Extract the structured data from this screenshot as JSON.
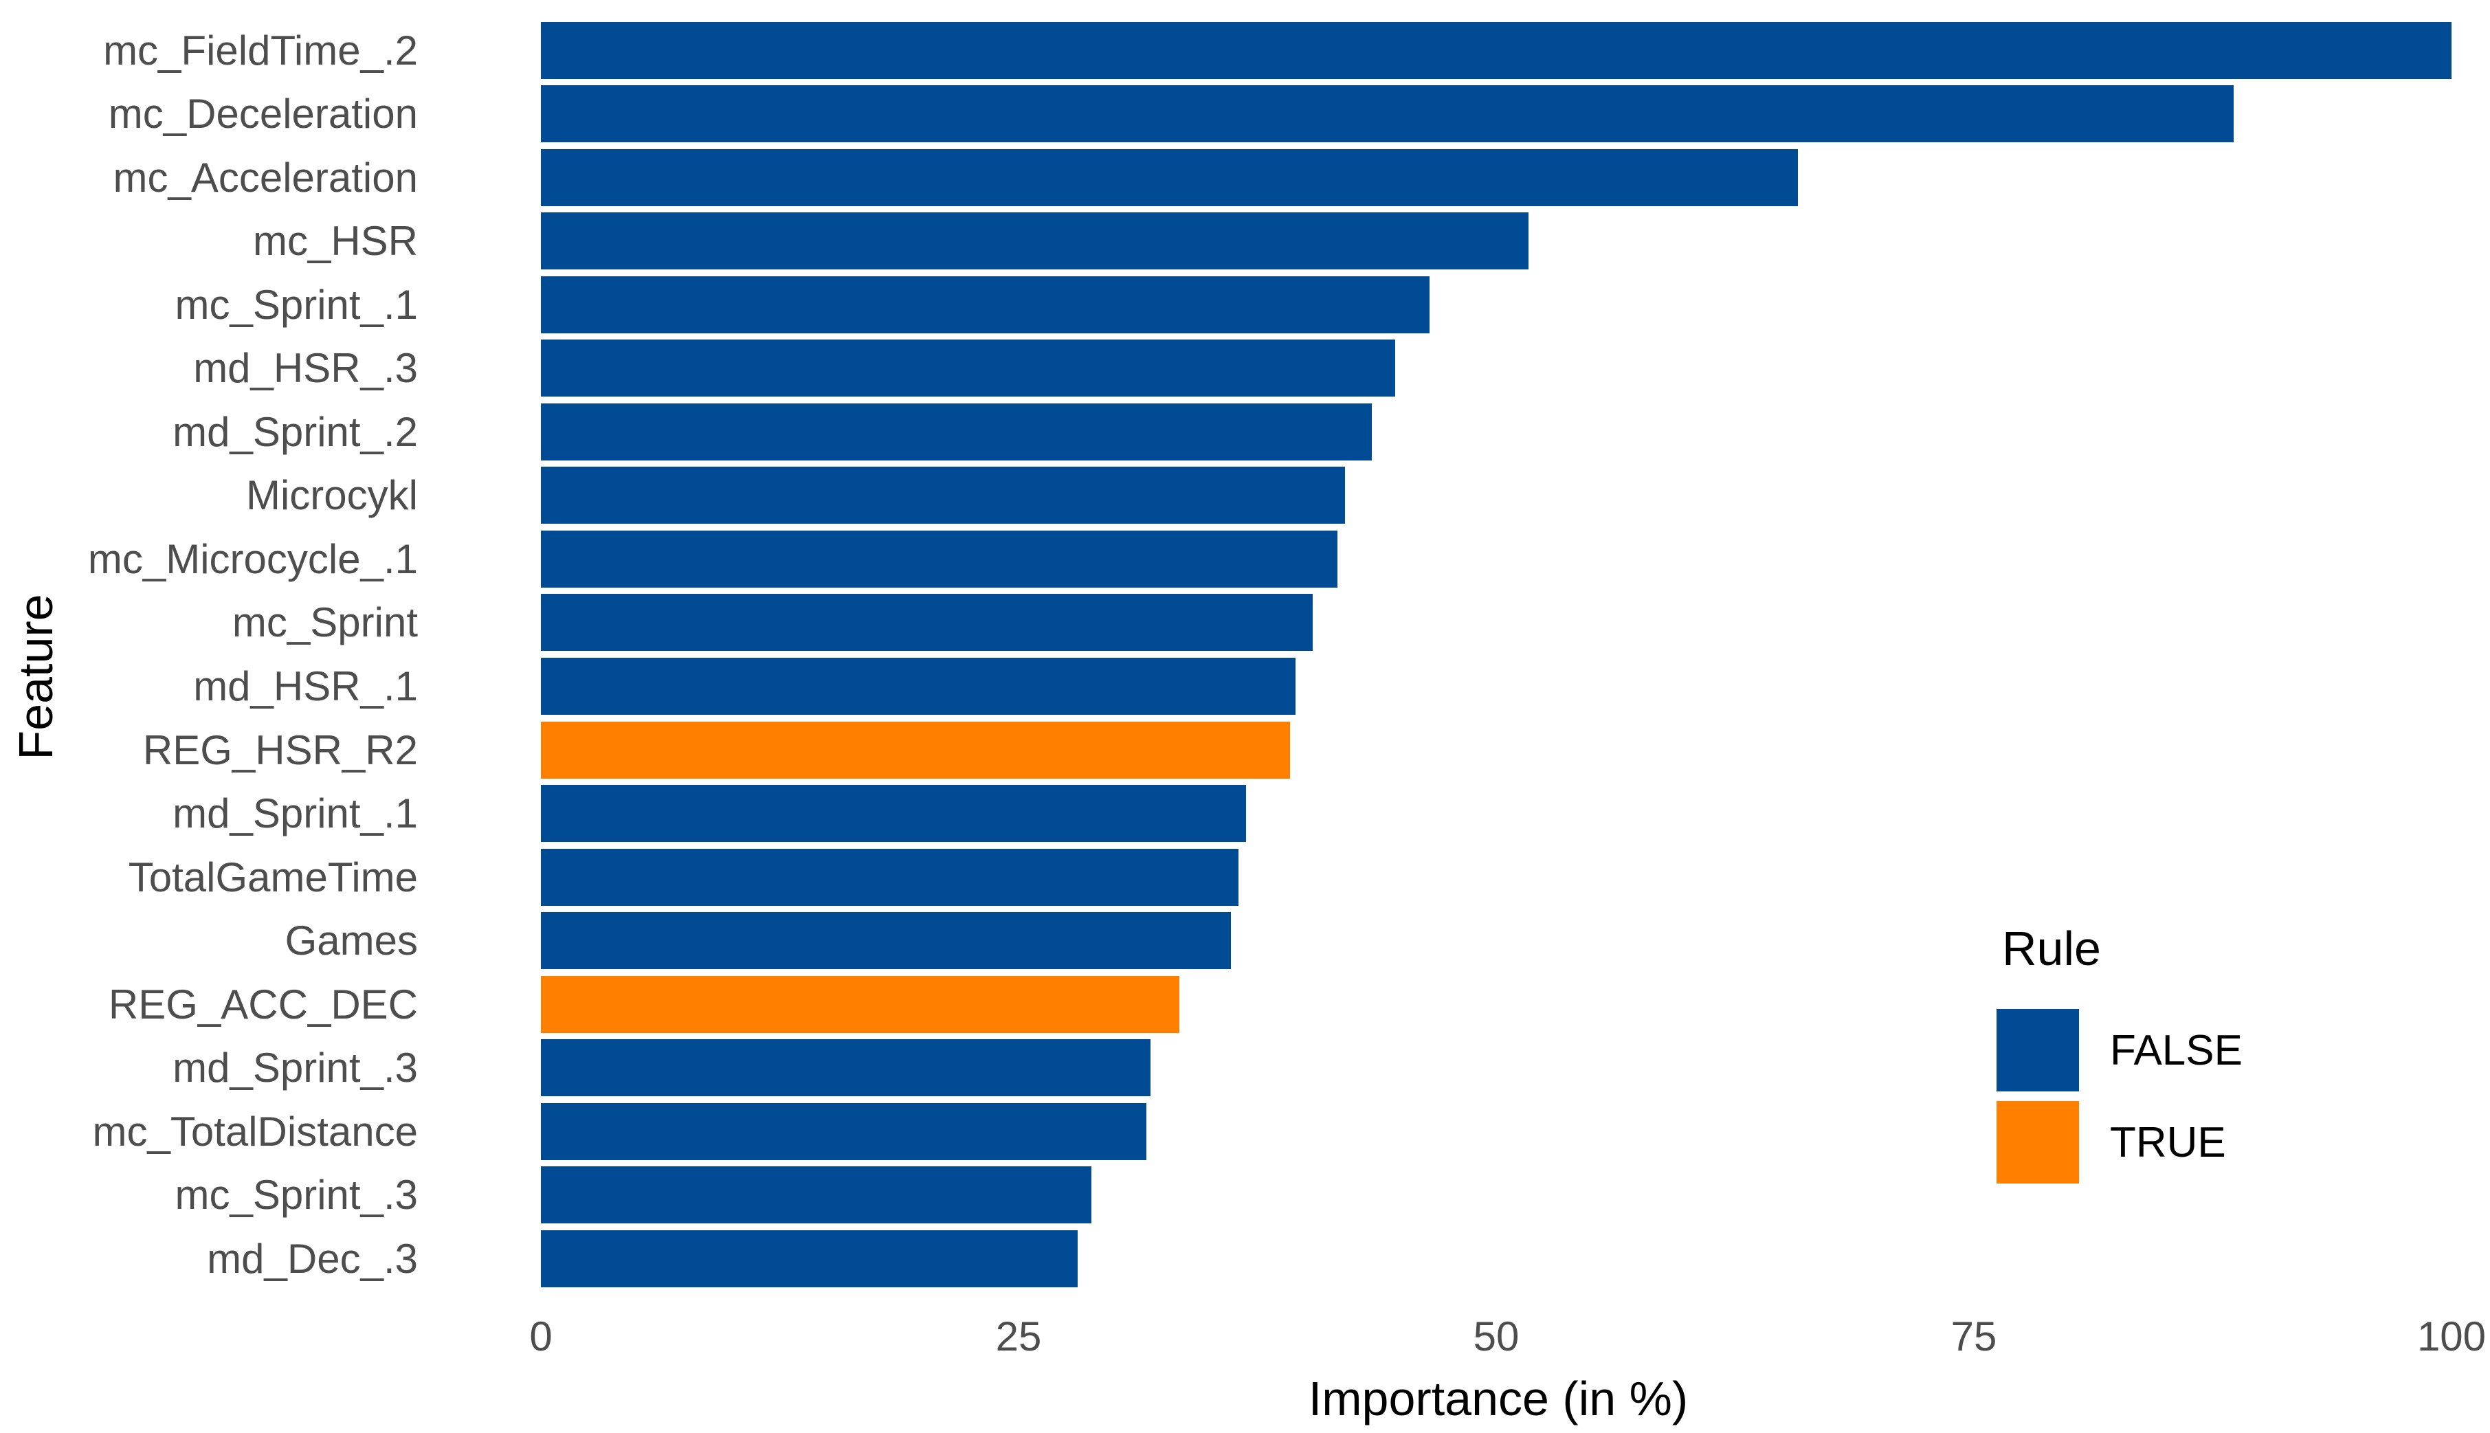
{
  "chart_data": {
    "type": "bar",
    "orientation": "horizontal",
    "xlabel": "Importance (in %)",
    "ylabel": "Feature",
    "xlim": [
      0,
      100
    ],
    "x_ticks": [
      "0",
      "25",
      "50",
      "75",
      "100"
    ],
    "grid": false,
    "background": "#ffffff",
    "colors": {
      "FALSE": "#004B93",
      "TRUE": "#FF7F00"
    },
    "tick_label_color": "#4D4D4D",
    "legend": {
      "title": "Rule",
      "position": "right",
      "entries": [
        {
          "label": "FALSE",
          "color": "#004B93"
        },
        {
          "label": "TRUE",
          "color": "#FF7F00"
        }
      ]
    },
    "bars": [
      {
        "feature": "mc_FieldTime_.2",
        "value": 100.0,
        "rule": "FALSE"
      },
      {
        "feature": "mc_Deceleration",
        "value": 88.6,
        "rule": "FALSE"
      },
      {
        "feature": "mc_Acceleration",
        "value": 65.8,
        "rule": "FALSE"
      },
      {
        "feature": "mc_HSR",
        "value": 51.7,
        "rule": "FALSE"
      },
      {
        "feature": "mc_Sprint_.1",
        "value": 46.5,
        "rule": "FALSE"
      },
      {
        "feature": "md_HSR_.3",
        "value": 44.7,
        "rule": "FALSE"
      },
      {
        "feature": "md_Sprint_.2",
        "value": 43.5,
        "rule": "FALSE"
      },
      {
        "feature": "Microcykl",
        "value": 42.1,
        "rule": "FALSE"
      },
      {
        "feature": "mc_Microcycle_.1",
        "value": 41.7,
        "rule": "FALSE"
      },
      {
        "feature": "mc_Sprint",
        "value": 40.4,
        "rule": "FALSE"
      },
      {
        "feature": "md_HSR_.1",
        "value": 39.5,
        "rule": "FALSE"
      },
      {
        "feature": "REG_HSR_R2",
        "value": 39.2,
        "rule": "TRUE"
      },
      {
        "feature": "md_Sprint_.1",
        "value": 36.9,
        "rule": "FALSE"
      },
      {
        "feature": "TotalGameTime",
        "value": 36.5,
        "rule": "FALSE"
      },
      {
        "feature": "Games",
        "value": 36.1,
        "rule": "FALSE"
      },
      {
        "feature": "REG_ACC_DEC",
        "value": 33.4,
        "rule": "TRUE"
      },
      {
        "feature": "md_Sprint_.3",
        "value": 31.9,
        "rule": "FALSE"
      },
      {
        "feature": "mc_TotalDistance",
        "value": 31.7,
        "rule": "FALSE"
      },
      {
        "feature": "mc_Sprint_.3",
        "value": 28.8,
        "rule": "FALSE"
      },
      {
        "feature": "md_Dec_.3",
        "value": 28.1,
        "rule": "FALSE"
      }
    ]
  }
}
